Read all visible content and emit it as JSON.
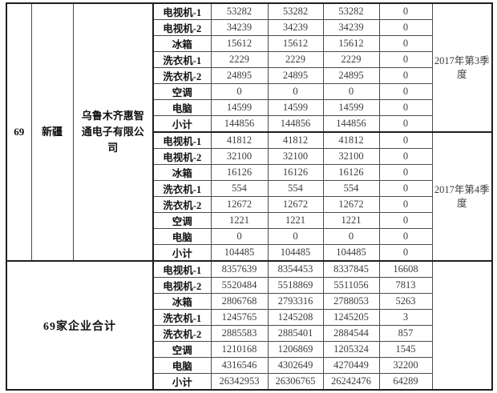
{
  "entity": {
    "row_no": "69",
    "region": "新疆",
    "company": "乌鲁木齐惠智通电子有限公司"
  },
  "totals_label": "69家企业合计",
  "sections": [
    {
      "period": "2017年第3季度",
      "rows": [
        {
          "product": "电视机-1",
          "values": [
            "53282",
            "53282",
            "53282",
            "0"
          ]
        },
        {
          "product": "电视机-2",
          "values": [
            "34239",
            "34239",
            "34239",
            "0"
          ]
        },
        {
          "product": "冰箱",
          "values": [
            "15612",
            "15612",
            "15612",
            "0"
          ]
        },
        {
          "product": "洗衣机-1",
          "values": [
            "2229",
            "2229",
            "2229",
            "0"
          ]
        },
        {
          "product": "洗衣机-2",
          "values": [
            "24895",
            "24895",
            "24895",
            "0"
          ]
        },
        {
          "product": "空调",
          "values": [
            "0",
            "0",
            "0",
            "0"
          ]
        },
        {
          "product": "电脑",
          "values": [
            "14599",
            "14599",
            "14599",
            "0"
          ]
        },
        {
          "product": "小计",
          "values": [
            "144856",
            "144856",
            "144856",
            "0"
          ]
        }
      ]
    },
    {
      "period": "2017年第4季度",
      "rows": [
        {
          "product": "电视机-1",
          "values": [
            "41812",
            "41812",
            "41812",
            "0"
          ]
        },
        {
          "product": "电视机-2",
          "values": [
            "32100",
            "32100",
            "32100",
            "0"
          ]
        },
        {
          "product": "冰箱",
          "values": [
            "16126",
            "16126",
            "16126",
            "0"
          ]
        },
        {
          "product": "洗衣机-1",
          "values": [
            "554",
            "554",
            "554",
            "0"
          ]
        },
        {
          "product": "洗衣机-2",
          "values": [
            "12672",
            "12672",
            "12672",
            "0"
          ]
        },
        {
          "product": "空调",
          "values": [
            "1221",
            "1221",
            "1221",
            "0"
          ]
        },
        {
          "product": "电脑",
          "values": [
            "0",
            "0",
            "0",
            "0"
          ]
        },
        {
          "product": "小计",
          "values": [
            "104485",
            "104485",
            "104485",
            "0"
          ]
        }
      ]
    },
    {
      "period": "",
      "rows": [
        {
          "product": "电视机-1",
          "values": [
            "8357639",
            "8354453",
            "8337845",
            "16608"
          ]
        },
        {
          "product": "电视机-2",
          "values": [
            "5520484",
            "5518869",
            "5511056",
            "7813"
          ]
        },
        {
          "product": "冰箱",
          "values": [
            "2806768",
            "2793316",
            "2788053",
            "5263"
          ]
        },
        {
          "product": "洗衣机-1",
          "values": [
            "1245765",
            "1245208",
            "1245205",
            "3"
          ]
        },
        {
          "product": "洗衣机-2",
          "values": [
            "2885583",
            "2885401",
            "2884544",
            "857"
          ]
        },
        {
          "product": "空调",
          "values": [
            "1210168",
            "1206869",
            "1205324",
            "1545"
          ]
        },
        {
          "product": "电脑",
          "values": [
            "4316546",
            "4302649",
            "4270449",
            "32200"
          ]
        },
        {
          "product": "小计",
          "values": [
            "26342953",
            "26306765",
            "26242476",
            "64289"
          ]
        }
      ]
    }
  ]
}
